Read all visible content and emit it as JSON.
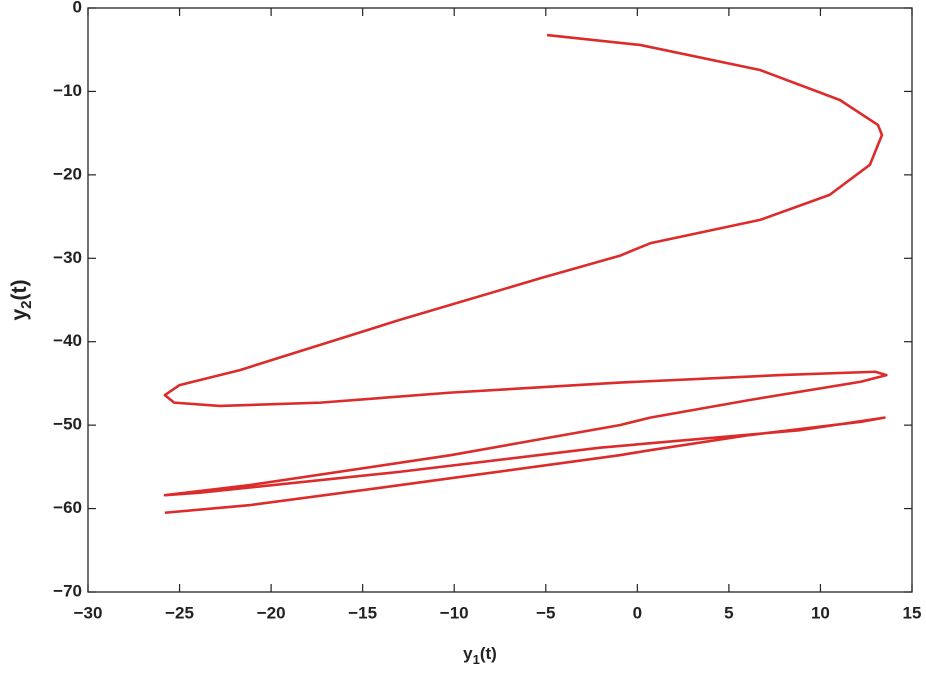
{
  "chart_data": {
    "type": "line",
    "xlabel": [
      "y",
      "1",
      "(t)"
    ],
    "ylabel": [
      "y",
      "2",
      "(t)"
    ],
    "xlim": [
      -30,
      15
    ],
    "ylim": [
      -70,
      0
    ],
    "xticks": [
      {
        "value": -30,
        "label": "−30"
      },
      {
        "value": -25,
        "label": "−25"
      },
      {
        "value": -20,
        "label": "−20"
      },
      {
        "value": -15,
        "label": "−15"
      },
      {
        "value": -10,
        "label": "−10"
      },
      {
        "value": -5,
        "label": "−5"
      },
      0,
      5,
      10,
      15
    ],
    "yticks": [
      0,
      {
        "value": -10,
        "label": "−10"
      },
      {
        "value": -20,
        "label": "−20"
      },
      {
        "value": -30,
        "label": "−30"
      },
      {
        "value": -40,
        "label": "−40"
      },
      {
        "value": -50,
        "label": "−50"
      },
      {
        "value": -60,
        "label": "−60"
      },
      {
        "value": -70,
        "label": "−70"
      }
    ],
    "grid": false,
    "series": [
      {
        "color": "#dc2b2b",
        "x": [
          -4.93,
          0.15,
          6.7,
          11.06,
          13.14,
          13.36,
          12.7,
          10.5,
          6.7,
          0.7,
          -0.96,
          -5.3,
          -13,
          -21.7,
          -25,
          -25.8,
          -25.3,
          -22.8,
          -17.3,
          -10.2,
          -0.96,
          7.8,
          13,
          13.6,
          12.2,
          6.1,
          0.7,
          -0.96,
          -10.2,
          -21.2,
          -25.8,
          -23.9,
          -13,
          -2.04,
          8.9,
          13.5,
          12.2,
          6.1,
          0.7,
          -0.96,
          -13,
          -21.2,
          -25.8
        ],
        "values": [
          -3.24,
          -4.43,
          -7.43,
          -11.03,
          -14.02,
          -15.22,
          -18.8,
          -22.4,
          -25.4,
          -28.2,
          -29.7,
          -32.4,
          -37.4,
          -43.4,
          -45.2,
          -46.4,
          -47.3,
          -47.7,
          -47.3,
          -46.1,
          -44.9,
          -44.0,
          -43.6,
          -44.0,
          -44.8,
          -47.0,
          -49.1,
          -50.0,
          -53.6,
          -57.2,
          -58.4,
          -58.1,
          -55.6,
          -52.7,
          -50.6,
          -49.1,
          -49.6,
          -51.2,
          -53.0,
          -53.6,
          -57.2,
          -59.6,
          -60.5
        ]
      }
    ]
  }
}
